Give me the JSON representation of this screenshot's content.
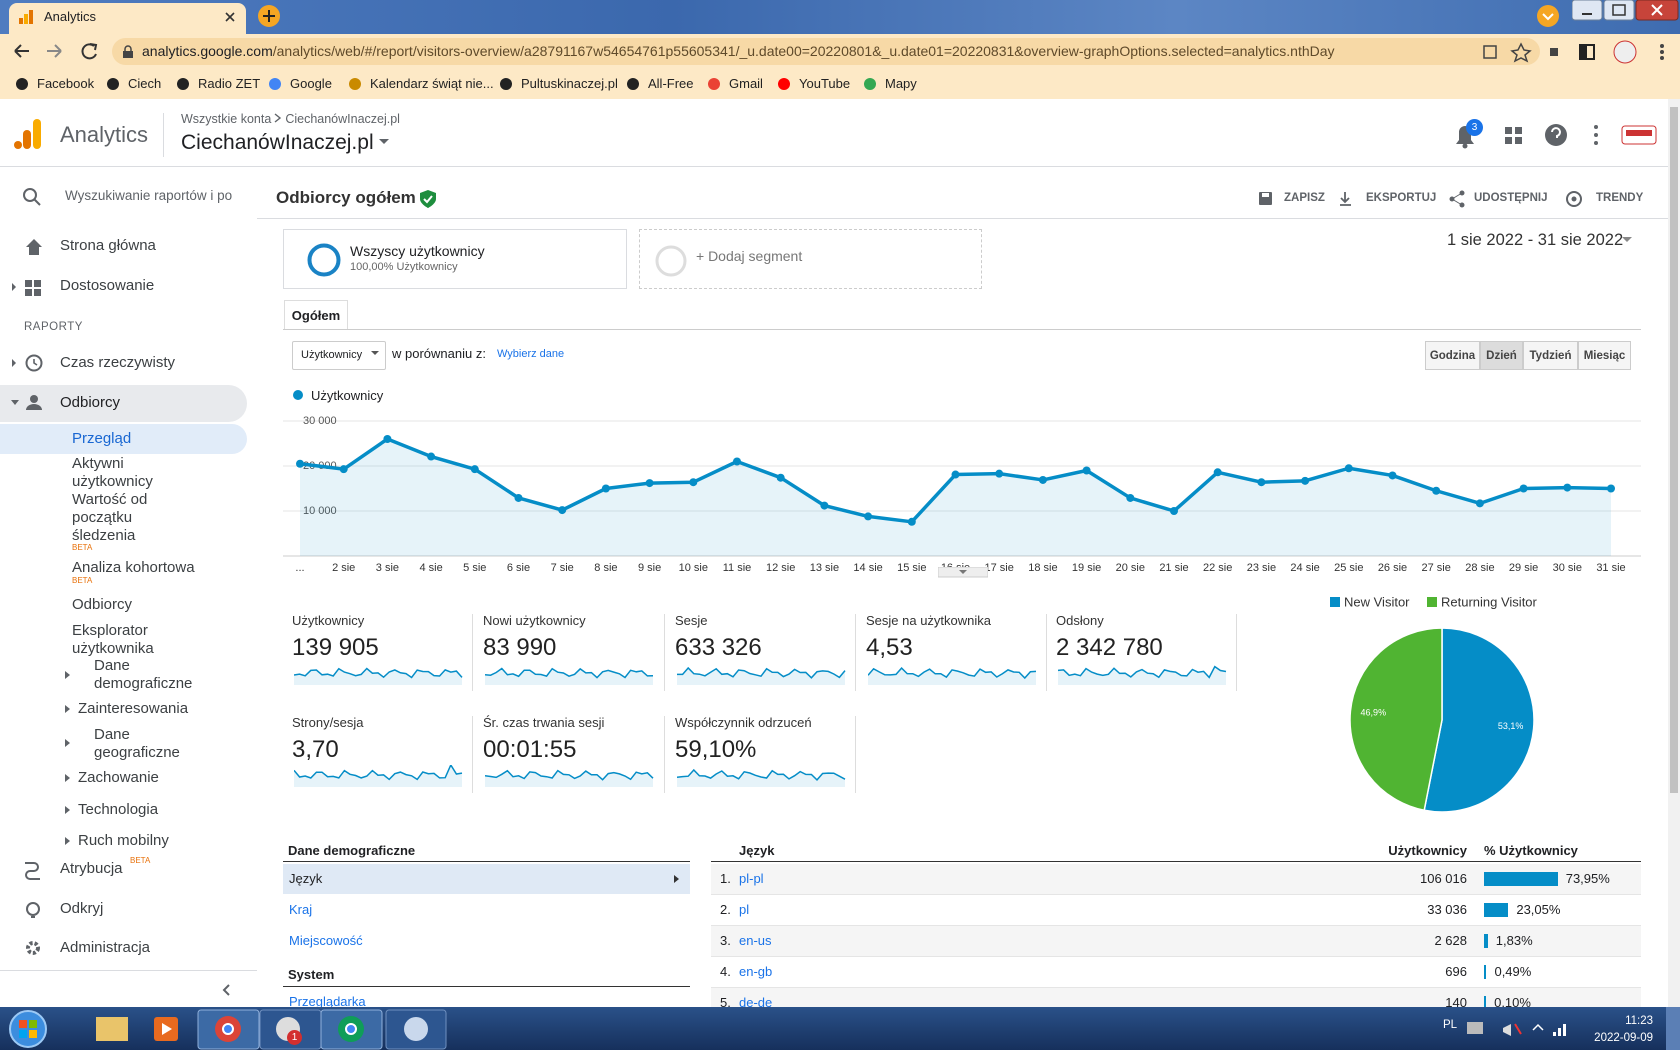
{
  "browser": {
    "tab_title": "Analytics",
    "url_host": "analytics.google.com",
    "url_path": "/analytics/web/#/report/visitors-overview/a28791167w54654761p55605341/_u.date00=20220801&_u.date01=20220831&overview-graphOptions.selected=analytics.nthDay",
    "bookmarks": [
      "Facebook",
      "Ciech",
      "Radio ZET",
      "Google",
      "Kalendarz świąt nie...",
      "Pultuskinaczej.pl",
      "All-Free",
      "Gmail",
      "YouTube",
      "Mapy"
    ]
  },
  "header": {
    "product": "Analytics",
    "account": "Wszystkie konta",
    "account_property": "CiechanówInaczej.pl",
    "property": "CiechanówInaczej.pl",
    "notifications": "3"
  },
  "sidebar": {
    "search": "Wyszukiwanie raportów i po",
    "home": "Strona główna",
    "customize": "Dostosowanie",
    "reports": "RAPORTY",
    "realtime": "Czas rzeczywisty",
    "audience": "Odbiorcy",
    "sub": [
      "Przegląd",
      "Aktywni użytkownicy",
      "Wartość od początku śledzenia",
      "Analiza kohortowa",
      "Odbiorcy",
      "Eksplorator użytkownika",
      "Dane demograficzne",
      "Zainteresowania",
      "Dane geograficzne",
      "Zachowanie",
      "Technologia",
      "Ruch mobilny"
    ],
    "beta": "BETA",
    "attribution": "Atrybucja",
    "discover": "Odkryj",
    "admin": "Administracja"
  },
  "report": {
    "title": "Odbiorcy ogółem",
    "actions": [
      "ZAPISZ",
      "EKSPORTUJ",
      "UDOSTĘPNIJ",
      "TRENDY"
    ],
    "segment": "Wszyscy użytkownicy",
    "segment_sub": "100,00% Użytkownicy",
    "add_segment": "+ Dodaj segment",
    "date_range": "1 sie 2022 - 31 sie 2022",
    "tab": "Ogółem",
    "metric_select": "Użytkownicy",
    "compare": "w porównaniu z:",
    "choose": "Wybierz dane",
    "granularity": [
      "Godzina",
      "Dzień",
      "Tydzień",
      "Miesiąc"
    ]
  },
  "line_chart": {
    "type": "line",
    "categories": [
      "...",
      "2 sie",
      "3 sie",
      "4 sie",
      "5 sie",
      "6 sie",
      "7 sie",
      "8 sie",
      "9 sie",
      "10 sie",
      "11 sie",
      "12 sie",
      "13 sie",
      "14 sie",
      "15 sie",
      "16 sie",
      "17 sie",
      "18 sie",
      "19 sie",
      "20 sie",
      "21 sie",
      "22 sie",
      "23 sie",
      "24 sie",
      "25 sie",
      "26 sie",
      "27 sie",
      "28 sie",
      "29 sie",
      "30 sie",
      "31 sie"
    ],
    "series": [
      {
        "name": "Użytkownicy",
        "color": "#058dc7",
        "values": [
          20500,
          19300,
          26000,
          22100,
          19300,
          12900,
          10200,
          15000,
          16200,
          16400,
          21000,
          17400,
          11200,
          8800,
          7600,
          18100,
          18300,
          16900,
          19000,
          12900,
          10000,
          18600,
          16400,
          16700,
          19500,
          17900,
          14500,
          11700,
          15000,
          15200,
          15000
        ]
      }
    ],
    "ylim": [
      0,
      30000
    ],
    "yticks": [
      {
        "value": 10000,
        "label": "10 000"
      },
      {
        "value": 20000,
        "label": "20 000"
      },
      {
        "value": 30000,
        "label": "30 000"
      }
    ],
    "grid": true
  },
  "metrics": [
    {
      "label": "Użytkownicy",
      "value": "139 905"
    },
    {
      "label": "Nowi użytkownicy",
      "value": "83 990"
    },
    {
      "label": "Sesje",
      "value": "633 326"
    },
    {
      "label": "Sesje na użytkownika",
      "value": "4,53"
    },
    {
      "label": "Odsłony",
      "value": "2 342 780"
    },
    {
      "label": "Strony/sesja",
      "value": "3,70"
    },
    {
      "label": "Śr. czas trwania sesji",
      "value": "00:01:55"
    },
    {
      "label": "Współczynnik odrzuceń",
      "value": "59,10%"
    }
  ],
  "pie_chart": {
    "type": "pie",
    "categories": [
      "New Visitor",
      "Returning Visitor"
    ],
    "values": [
      53.1,
      46.9
    ],
    "value_labels": [
      "53,1%",
      "46,9%"
    ],
    "colors": [
      "#058dc7",
      "#50b432"
    ]
  },
  "demographics": {
    "section": "Dane demograficzne",
    "menu": [
      "Język",
      "Kraj",
      "Miejscowość"
    ],
    "system_section": "System",
    "system_menu": [
      "Przeglądarka"
    ]
  },
  "language_table": {
    "headers": [
      "Język",
      "Użytkownicy",
      "% Użytkownicy"
    ],
    "rows": [
      {
        "rank": "1.",
        "language": "pl-pl",
        "users": "106 016",
        "share": {
          "value": 73.95,
          "label": "73,95%"
        }
      },
      {
        "rank": "2.",
        "language": "pl",
        "users": "33 036",
        "share": {
          "value": 23.05,
          "label": "23,05%"
        }
      },
      {
        "rank": "3.",
        "language": "en-us",
        "users": "2 628",
        "share": {
          "value": 1.83,
          "label": "1,83%"
        }
      },
      {
        "rank": "4.",
        "language": "en-gb",
        "users": "696",
        "share": {
          "value": 0.49,
          "label": "0,49%"
        }
      },
      {
        "rank": "5.",
        "language": "de-de",
        "users": "140",
        "share": {
          "value": 0.1,
          "label": "0,10%"
        }
      }
    ]
  },
  "taskbar": {
    "lang": "PL",
    "time": "11:23",
    "date": "2022-09-09",
    "badge": "1"
  }
}
